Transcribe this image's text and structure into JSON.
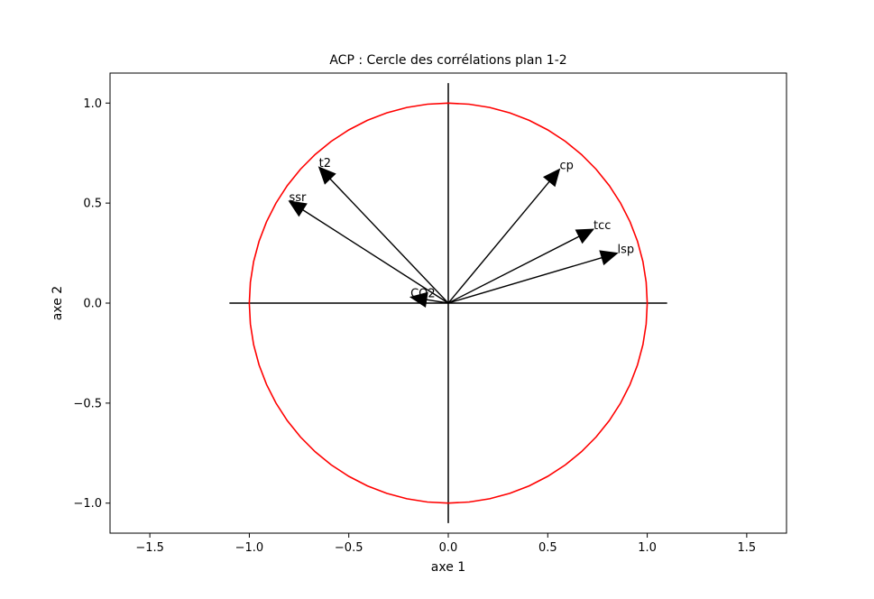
{
  "chart_data": {
    "type": "scatter",
    "title": "ACP : Cercle des corrélations plan 1-2",
    "xlabel": "axe 1",
    "ylabel": "axe 2",
    "xlim": [
      -1.7,
      1.7
    ],
    "ylim": [
      -1.15,
      1.15
    ],
    "xticks": [
      -1.5,
      -1.0,
      -0.5,
      0.0,
      0.5,
      1.0,
      1.5
    ],
    "xtick_labels": [
      "−1.5",
      "−1.0",
      "−0.5",
      "0.0",
      "0.5",
      "1.0",
      "1.5"
    ],
    "yticks": [
      -1.0,
      -0.5,
      0.0,
      0.5,
      1.0
    ],
    "ytick_labels": [
      "−1.0",
      "−0.5",
      "0.0",
      "0.5",
      "1.0"
    ],
    "grid": false,
    "circle": {
      "radius": 1.0,
      "color": "#ff0000"
    },
    "reference_lines": {
      "horizontal": {
        "y": 0.0,
        "x_range": [
          -1.1,
          1.1
        ]
      },
      "vertical": {
        "x": 0.0,
        "y_range": [
          -1.1,
          1.1
        ]
      }
    },
    "vectors": [
      {
        "label": "t2",
        "x": -0.65,
        "y": 0.68
      },
      {
        "label": "ssr",
        "x": -0.8,
        "y": 0.51
      },
      {
        "label": "cp",
        "x": 0.56,
        "y": 0.67
      },
      {
        "label": "tcc",
        "x": 0.73,
        "y": 0.37
      },
      {
        "label": "lsp",
        "x": 0.85,
        "y": 0.25
      },
      {
        "label": "CO2",
        "x": -0.19,
        "y": 0.03
      }
    ]
  }
}
